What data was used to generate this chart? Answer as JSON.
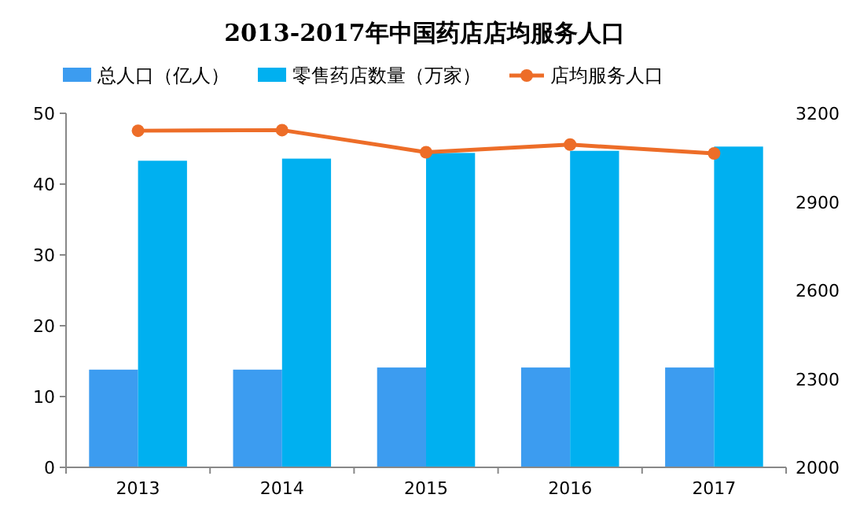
{
  "chart_data": {
    "type": "bar",
    "title": "2013-2017年中国药店店均服务人口",
    "categories": [
      "2013",
      "2014",
      "2015",
      "2016",
      "2017"
    ],
    "series": [
      {
        "name": "总人口（亿人）",
        "color": "#3c9cf0",
        "values": [
          13.8,
          13.8,
          14.1,
          14.1,
          14.1
        ]
      },
      {
        "name": "零售药店数量（万家）",
        "color": "#00b0f0",
        "values": [
          43.3,
          43.6,
          44.4,
          44.7,
          45.3
        ]
      },
      {
        "name": "店均服务人口",
        "color": "#ed6d28",
        "type": "line",
        "axis": "y2",
        "marker": "circle",
        "values": [
          3141,
          3143,
          3068,
          3094,
          3064
        ]
      }
    ],
    "ylim": [
      0,
      50
    ],
    "yticks": [
      0,
      10,
      20,
      30,
      40,
      50
    ],
    "y2lim": [
      2000,
      3200
    ],
    "y2ticks": [
      2000,
      2300,
      2600,
      2900,
      3200
    ],
    "legend": "top",
    "grid": false
  }
}
